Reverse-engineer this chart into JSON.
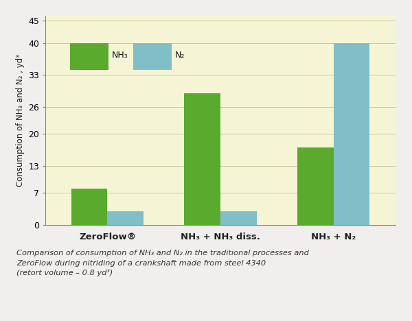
{
  "categories": [
    "ZeroFlow®",
    "NH₃ + NH₃ diss.",
    "NH₃ + N₂"
  ],
  "nh3_values": [
    8,
    29,
    17
  ],
  "n2_values": [
    3,
    3,
    40
  ],
  "nh3_color": "#5aaa2e",
  "n2_color": "#80bec8",
  "ylabel": "Consumption of NH₃ and N₂ , yd³",
  "yticks": [
    0,
    7,
    13,
    20,
    26,
    33,
    40,
    45
  ],
  "ylim": [
    0,
    46
  ],
  "plot_bg_color": "#f5f5d5",
  "outer_bg_color": "#f0efee",
  "legend_nh3": "NH₃",
  "legend_n2": "N₂",
  "caption": "Comparison of consumption of NH₃ and N₂ in the traditional processes and\nZeroFlow during nitriding of a crankshaft made from steel 4340\n(retort volume – 0.8 yd³)",
  "bar_width": 0.32,
  "figsize": [
    6.0,
    4.68
  ],
  "dpi": 100
}
